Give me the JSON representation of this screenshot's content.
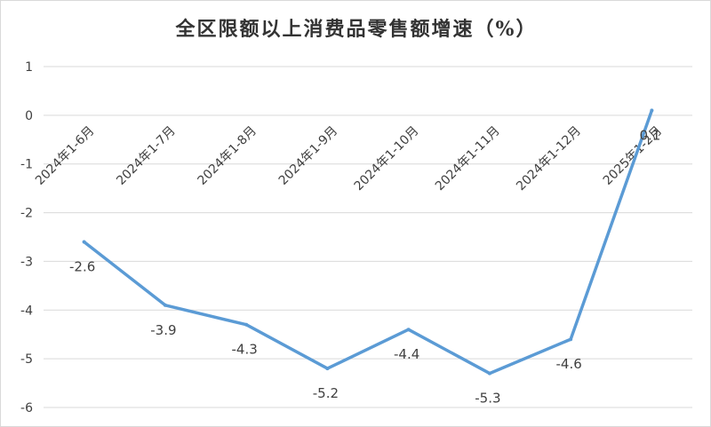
{
  "chart_data": {
    "type": "line",
    "title": "全区限额以上消费品零售额增速（%）",
    "xlabel": "",
    "ylabel": "",
    "categories": [
      "2024年1-6月",
      "2024年1-7月",
      "2024年1-8月",
      "2024年1-9月",
      "2024年1-10月",
      "2024年1-11月",
      "2024年1-12月",
      "2025年1-2月"
    ],
    "series": [
      {
        "values": [
          -2.6,
          -3.9,
          -4.3,
          -5.2,
          -4.4,
          -5.3,
          -4.6,
          0.1
        ],
        "color": "#5b9bd5"
      }
    ],
    "data_labels": [
      "-2.6",
      "-3.9",
      "-4.3",
      "-5.2",
      "-4.4",
      "-5.3",
      "-4.6",
      "0.1"
    ],
    "yticks": [
      1,
      0,
      -1,
      -2,
      -3,
      -4,
      -5,
      -6
    ],
    "ylim": [
      -6,
      1
    ],
    "grid": true,
    "legend": "none",
    "colors": {
      "line": "#5b9bd5",
      "grid": "#d9d9d9",
      "text": "#404040"
    }
  }
}
